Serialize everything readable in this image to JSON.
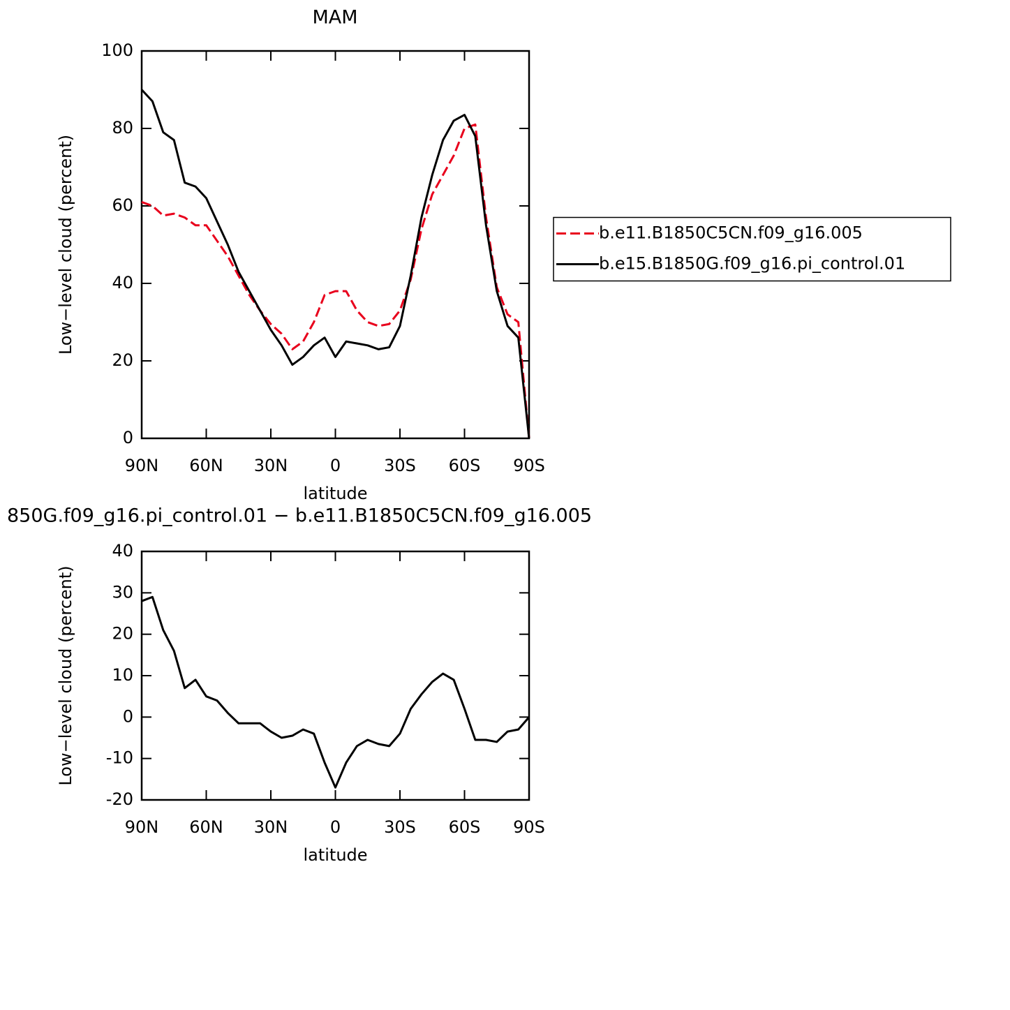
{
  "chart_data": [
    {
      "type": "line",
      "title": "MAM",
      "xlabel": "latitude",
      "ylabel": "Low−level cloud (percent)",
      "x": [
        90,
        85,
        80,
        75,
        70,
        65,
        60,
        55,
        50,
        45,
        40,
        35,
        30,
        25,
        20,
        15,
        10,
        5,
        0,
        -5,
        -10,
        -15,
        -20,
        -25,
        -30,
        -35,
        -40,
        -45,
        -50,
        -55,
        -60,
        -65,
        -70,
        -75,
        -80,
        -85,
        -90
      ],
      "series": [
        {
          "name": "b.e11.B1850C5CN.f09_g16.005",
          "color": "#e8001c",
          "linestyle": "dashed",
          "values": [
            61,
            60,
            57.5,
            58,
            57,
            55,
            55,
            51,
            47,
            42,
            37,
            33,
            29.5,
            27,
            23,
            25,
            30,
            37,
            38,
            38,
            33,
            30,
            29,
            29.5,
            33,
            41,
            54,
            63,
            68,
            73,
            80,
            81,
            57,
            39,
            32,
            30,
            0
          ]
        },
        {
          "name": "b.e15.B1850G.f09_g16.pi_control.01",
          "color": "#000000",
          "linestyle": "solid",
          "values": [
            90,
            87,
            79,
            77,
            66,
            65,
            62,
            56,
            50,
            43,
            38,
            33,
            28,
            24,
            19,
            21,
            24,
            26,
            21,
            25,
            24.5,
            24,
            23,
            23.5,
            29,
            42,
            57,
            68,
            77,
            82,
            83.5,
            78,
            55,
            38,
            29,
            26,
            0
          ]
        }
      ],
      "xlim": [
        90,
        -90
      ],
      "xticks": [
        {
          "value": 90,
          "label": "90N"
        },
        {
          "value": 60,
          "label": "60N"
        },
        {
          "value": 30,
          "label": "30N"
        },
        0,
        {
          "value": -30,
          "label": "30S"
        },
        {
          "value": -60,
          "label": "60S"
        },
        {
          "value": -90,
          "label": "90S"
        }
      ],
      "ylim": [
        0,
        100
      ],
      "yticks": [
        0,
        20,
        40,
        60,
        80,
        100
      ],
      "legend": "right"
    },
    {
      "type": "line",
      "title": "850G.f09_g16.pi_control.01 − b.e11.B1850C5CN.f09_g16.005",
      "xlabel": "latitude",
      "ylabel": "Low−level cloud (percent)",
      "x": [
        90,
        85,
        80,
        75,
        70,
        65,
        60,
        55,
        50,
        45,
        40,
        35,
        30,
        25,
        20,
        15,
        10,
        5,
        0,
        -5,
        -10,
        -15,
        -20,
        -25,
        -30,
        -35,
        -40,
        -45,
        -50,
        -55,
        -60,
        -65,
        -70,
        -75,
        -80,
        -85,
        -90
      ],
      "series": [
        {
          "color": "#000000",
          "linestyle": "solid",
          "values": [
            28,
            29,
            21,
            16,
            7,
            9,
            5,
            4,
            1,
            -1.5,
            -1.5,
            -1.5,
            -3.5,
            -5,
            -4.5,
            -3,
            -4,
            -11,
            -17,
            -11,
            -7,
            -5.5,
            -6.5,
            -7,
            -4,
            2,
            5.5,
            8.5,
            10.5,
            9,
            2,
            -5.5,
            -5.5,
            -6,
            -3.5,
            -3,
            0
          ]
        }
      ],
      "xlim": [
        90,
        -90
      ],
      "xticks": [
        {
          "value": 90,
          "label": "90N"
        },
        {
          "value": 60,
          "label": "60N"
        },
        {
          "value": 30,
          "label": "30N"
        },
        0,
        {
          "value": -30,
          "label": "30S"
        },
        {
          "value": -60,
          "label": "60S"
        },
        {
          "value": -90,
          "label": "90S"
        }
      ],
      "ylim": [
        -20,
        40
      ],
      "yticks": [
        -20,
        -10,
        0,
        10,
        20,
        30,
        40
      ]
    }
  ]
}
